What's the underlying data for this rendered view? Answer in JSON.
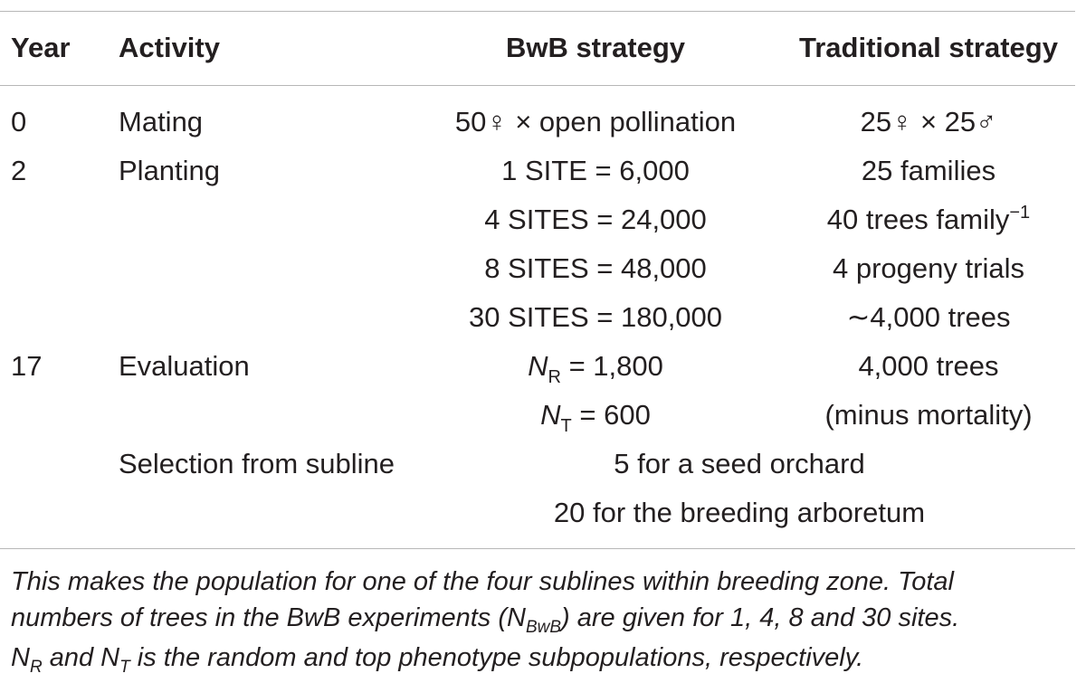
{
  "table": {
    "headers": {
      "year": "Year",
      "activity": "Activity",
      "bwb": "BwB strategy",
      "traditional": "Traditional strategy"
    },
    "rows": [
      {
        "year": "0",
        "activity": "Mating",
        "bwb": "50♀ × open pollination",
        "traditional": "25♀ × 25♂"
      },
      {
        "year": "2",
        "activity": "Planting",
        "bwb": "1 SITE = 6,000",
        "traditional": "25 families"
      },
      {
        "year": "",
        "activity": "",
        "bwb": "4 SITES = 24,000",
        "traditional_text": "40 trees family",
        "traditional_sup": "−1"
      },
      {
        "year": "",
        "activity": "",
        "bwb": "8 SITES = 48,000",
        "traditional": "4 progeny trials"
      },
      {
        "year": "",
        "activity": "",
        "bwb": "30 SITES = 180,000",
        "traditional": "∼4,000 trees"
      },
      {
        "year": "17",
        "activity": "Evaluation",
        "bwb_var": "N",
        "bwb_sub": "R",
        "bwb_rest": " = 1,800",
        "traditional": "4,000 trees"
      },
      {
        "year": "",
        "activity": "",
        "bwb_var": "N",
        "bwb_sub": "T",
        "bwb_rest": " = 600",
        "traditional": "(minus mortality)"
      },
      {
        "year": "",
        "activity": "Selection from subline",
        "span": "5 for a seed orchard"
      },
      {
        "year": "",
        "activity": "",
        "span": "20 for the breeding arboretum"
      }
    ]
  },
  "footnote": {
    "line1": "This makes the population for one of the four sublines within breeding zone. Total",
    "line2_a": "numbers of trees in the BwB experiments (N",
    "line2_sub": "BwB",
    "line2_b": ") are given for 1, 4, 8 and 30 sites.",
    "line3_a": "N",
    "line3_sub1": "R",
    "line3_b": " and N",
    "line3_sub2": "T",
    "line3_c": " is the random and top phenotype subpopulations, respectively."
  }
}
